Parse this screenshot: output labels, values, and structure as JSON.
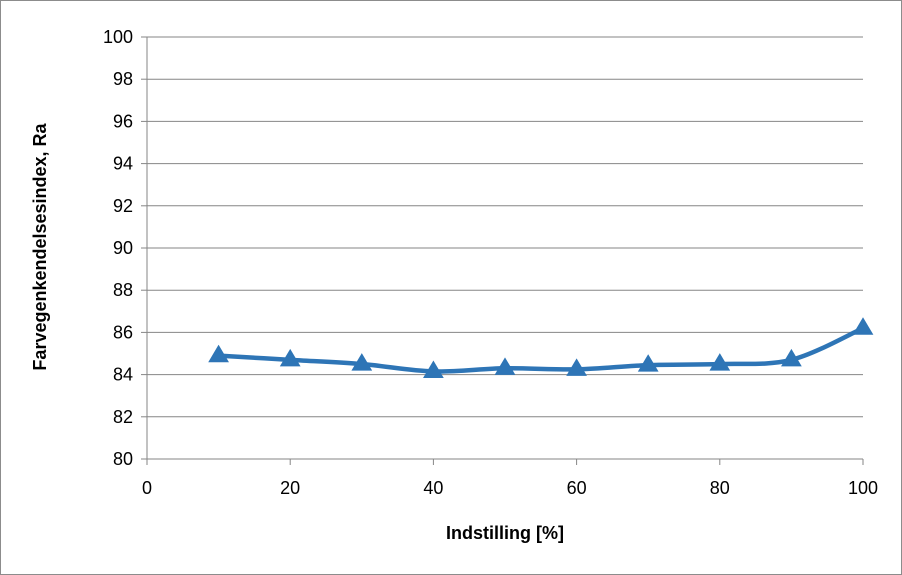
{
  "chart_data": {
    "type": "line",
    "title": "",
    "xlabel": "Indstilling [%]",
    "ylabel": "Farvegenkendelsesindex, Ra",
    "xlim": [
      0,
      100
    ],
    "ylim": [
      80,
      100
    ],
    "x_ticks": [
      0,
      20,
      40,
      60,
      80,
      100
    ],
    "y_ticks": [
      80,
      82,
      84,
      86,
      88,
      90,
      92,
      94,
      96,
      98,
      100
    ],
    "grid": "horizontal",
    "legend": "none",
    "series": [
      {
        "color": "#2e75b6",
        "marker": "triangle",
        "smooth": true,
        "x": [
          10,
          20,
          30,
          40,
          50,
          60,
          70,
          80,
          90,
          100
        ],
        "y": [
          84.9,
          84.7,
          84.5,
          84.15,
          84.3,
          84.25,
          84.45,
          84.5,
          84.7,
          86.2
        ]
      }
    ]
  }
}
